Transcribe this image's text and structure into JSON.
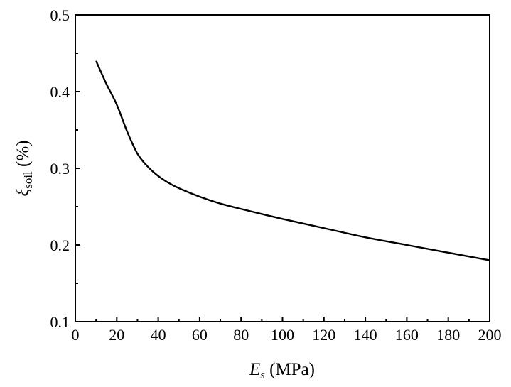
{
  "chart_data": {
    "type": "line",
    "title": "",
    "xlabel": {
      "main": "E",
      "sub": "s",
      "unit": " (MPa)"
    },
    "ylabel": {
      "main": "ξ",
      "sub": "soil",
      "unit": " (%)"
    },
    "xlim": [
      0,
      200
    ],
    "ylim": [
      0.1,
      0.5
    ],
    "xticks": [
      0,
      20,
      40,
      60,
      80,
      100,
      120,
      140,
      160,
      180,
      200
    ],
    "yticks": [
      0.1,
      0.2,
      0.3,
      0.4,
      0.5
    ],
    "yticks_labels": [
      "0.1",
      "0.2",
      "0.3",
      "0.4",
      "0.5"
    ],
    "grid": false,
    "series": [
      {
        "name": "xi_soil",
        "color": "#000000",
        "x": [
          10,
          15,
          20,
          25,
          30,
          35,
          40,
          45,
          50,
          60,
          70,
          80,
          100,
          120,
          140,
          160,
          180,
          200
        ],
        "y": [
          0.44,
          0.41,
          0.383,
          0.348,
          0.319,
          0.302,
          0.29,
          0.281,
          0.274,
          0.263,
          0.254,
          0.247,
          0.234,
          0.222,
          0.21,
          0.2,
          0.19,
          0.18
        ]
      }
    ]
  }
}
